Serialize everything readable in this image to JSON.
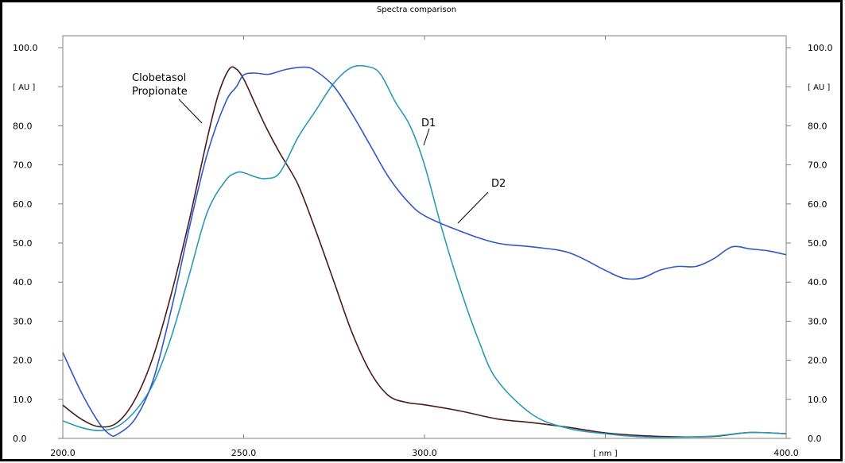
{
  "chart_data": {
    "type": "line",
    "title": "Spectra comparison",
    "xlabel": "[ nm ]",
    "ylabel_left": "[ AU ]",
    "ylabel_right": "[ AU ]",
    "xlim": [
      200,
      400
    ],
    "ylim": [
      0,
      100
    ],
    "x_ticks": [
      "200.0",
      "250.0",
      "300.0",
      "[ nm ]",
      "400.0"
    ],
    "y_ticks_left": [
      "100.0",
      "[ AU ]",
      "80.0",
      "70.0",
      "60.0",
      "50.0",
      "40.0",
      "30.0",
      "20.0",
      "10.0",
      "0.0"
    ],
    "y_ticks_right": [
      "100.0",
      "[ AU ]",
      "80.0",
      "70.0",
      "60.0",
      "50.0",
      "40.0",
      "30.0",
      "20.0",
      "10.0",
      "0.0"
    ],
    "grid": false,
    "annotations": [
      {
        "text": "Clobetasol",
        "series": "s_clobetasol"
      },
      {
        "text": "Propionate",
        "series": "s_clobetasol"
      },
      {
        "text": "D1",
        "series": "s_d1"
      },
      {
        "text": "D2",
        "series": "s_d2"
      }
    ],
    "series": [
      {
        "id": "s_clobetasol",
        "color": "#4a1a1a",
        "x": [
          200,
          205,
          210,
          215,
          220,
          225,
          230,
          235,
          240,
          243,
          246,
          248,
          250,
          253,
          256,
          260,
          265,
          270,
          275,
          280,
          285,
          290,
          295,
          300,
          310,
          320,
          330,
          340,
          350,
          360,
          370,
          380,
          390,
          400
        ],
        "y": [
          8.5,
          5,
          3,
          4,
          10,
          21,
          37,
          56,
          77,
          88,
          94.5,
          94.5,
          92,
          86,
          80,
          73,
          65,
          53,
          40,
          27,
          17,
          11,
          9.2,
          8.6,
          7,
          5,
          4,
          2.8,
          1.4,
          0.7,
          0.4,
          0.5,
          1.5,
          1.2
        ]
      },
      {
        "id": "s_d1",
        "color": "#2a9ab8",
        "x": [
          200,
          205,
          210,
          215,
          220,
          225,
          230,
          235,
          240,
          245,
          248,
          250,
          253,
          256,
          260,
          265,
          270,
          275,
          280,
          285,
          288,
          292,
          296,
          300,
          305,
          310,
          315,
          320,
          330,
          340,
          350,
          360,
          370,
          380,
          390,
          400
        ],
        "y": [
          4.5,
          2.8,
          2,
          3,
          7,
          14,
          26,
          42,
          58,
          66,
          68,
          68,
          67,
          66.5,
          68,
          77,
          84,
          91,
          95,
          95,
          93,
          86,
          80,
          70,
          53,
          38,
          25,
          15,
          6,
          2.5,
          1.2,
          0.4,
          0.3,
          0.6,
          1.5,
          1.2
        ]
      },
      {
        "id": "s_d2",
        "color": "#2f58c8",
        "x": [
          200,
          205,
          210,
          213,
          215,
          220,
          225,
          230,
          235,
          240,
          245,
          248,
          250,
          253,
          257,
          262,
          267,
          270,
          275,
          280,
          285,
          290,
          295,
          300,
          310,
          320,
          330,
          340,
          350,
          355,
          360,
          365,
          370,
          375,
          380,
          385,
          390,
          395,
          400
        ],
        "y": [
          22,
          12,
          4,
          1,
          1,
          5,
          15,
          33,
          54,
          73,
          86,
          90,
          93,
          93.5,
          93.2,
          94.5,
          95,
          94,
          90,
          83,
          75,
          67,
          61,
          57,
          53,
          50,
          49,
          47.5,
          43,
          41,
          41,
          43,
          44,
          44,
          46,
          49,
          48.5,
          48,
          47
        ]
      }
    ]
  }
}
